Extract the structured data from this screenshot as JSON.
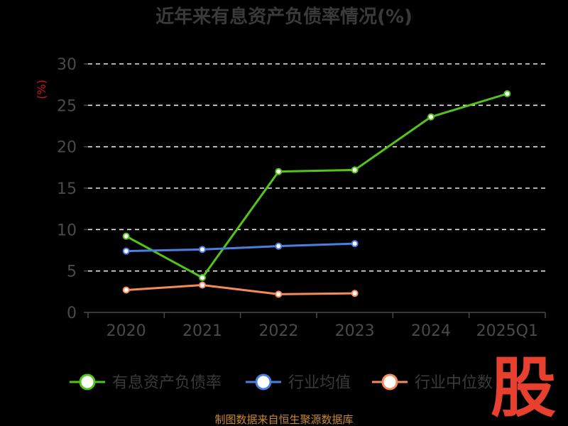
{
  "source_note": "制图数据来自恒生聚源数据库",
  "stamp_text": "股",
  "colors": {
    "background": "#000000",
    "text": "#3a3a3a",
    "grid": "#e8e8e8",
    "unit": "#d0121b",
    "source": "#c88a2b",
    "stamp": "#e8402f"
  },
  "chart_data": {
    "type": "line",
    "title": "近年来有息资产负债率情况(%)",
    "ylabel": "(%)",
    "categories": [
      "2020",
      "2021",
      "2022",
      "2023",
      "2024",
      "2025Q1"
    ],
    "ylim": [
      0,
      30
    ],
    "yticks": [
      0,
      5,
      10,
      15,
      20,
      25,
      30
    ],
    "grid": true,
    "legend_position": "bottom",
    "series": [
      {
        "name": "有息资产负债率",
        "color": "#52c41a",
        "values": [
          9.2,
          4.2,
          17.0,
          17.2,
          23.6,
          26.4
        ]
      },
      {
        "name": "行业均值",
        "color": "#4a7fe0",
        "values": [
          7.4,
          7.6,
          8.0,
          8.3,
          null,
          null
        ]
      },
      {
        "name": "行业中位数",
        "color": "#f58a5a",
        "values": [
          2.7,
          3.3,
          2.2,
          2.3,
          null,
          null
        ]
      }
    ]
  }
}
